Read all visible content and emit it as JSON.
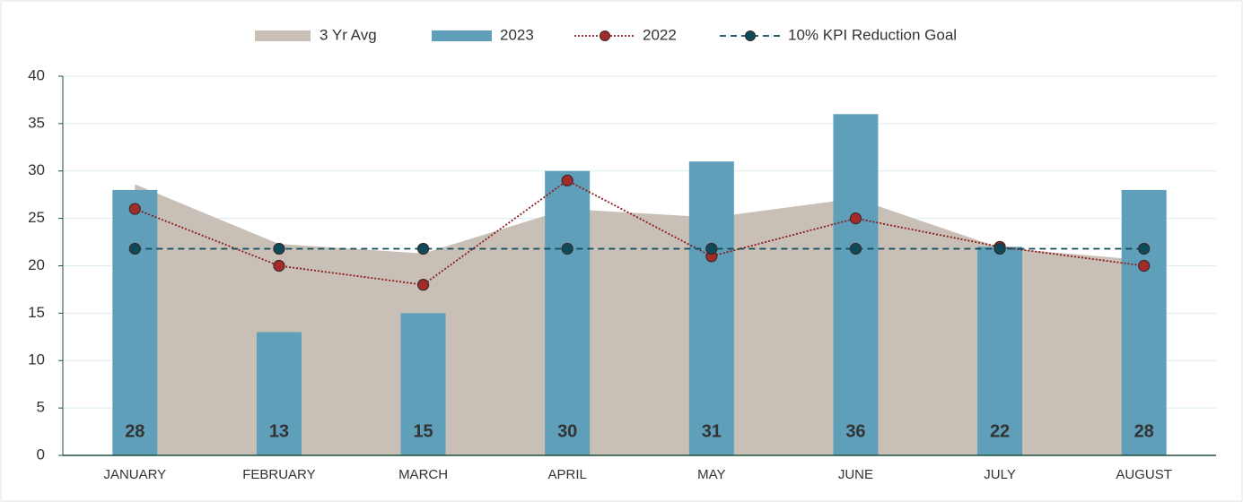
{
  "chart_data": {
    "type": "combo",
    "categories": [
      "JANUARY",
      "FEBRUARY",
      "MARCH",
      "APRIL",
      "MAY",
      "JUNE",
      "JULY",
      "AUGUST"
    ],
    "series": [
      {
        "name": "3 Yr Avg",
        "type": "area",
        "color": "#c8c0b6",
        "values": [
          28.6,
          22.3,
          21.3,
          26,
          25.1,
          27.1,
          21.9,
          20.6
        ]
      },
      {
        "name": "2023",
        "type": "bar",
        "color": "#5f9fba",
        "data_labels": true,
        "values": [
          28,
          13,
          15,
          30,
          31,
          36,
          22,
          28
        ]
      },
      {
        "name": "2022",
        "type": "line",
        "color": "#8b1a1a",
        "marker_color": "#a52a2a",
        "dash": "dotted",
        "values": [
          26,
          20,
          18,
          29,
          21,
          25,
          22,
          20
        ]
      },
      {
        "name": "10% KPI Reduction Goal",
        "type": "line",
        "color": "#0d4a5a",
        "marker_color": "#0d4a5a",
        "dash": "dashed",
        "values": [
          21.8,
          21.8,
          21.8,
          21.8,
          21.8,
          21.8,
          21.8,
          21.8
        ]
      }
    ],
    "ylim": [
      0,
      40
    ],
    "yticks": [
      0,
      5,
      10,
      15,
      20,
      25,
      30,
      35,
      40
    ],
    "grid": true,
    "legend": "top"
  }
}
